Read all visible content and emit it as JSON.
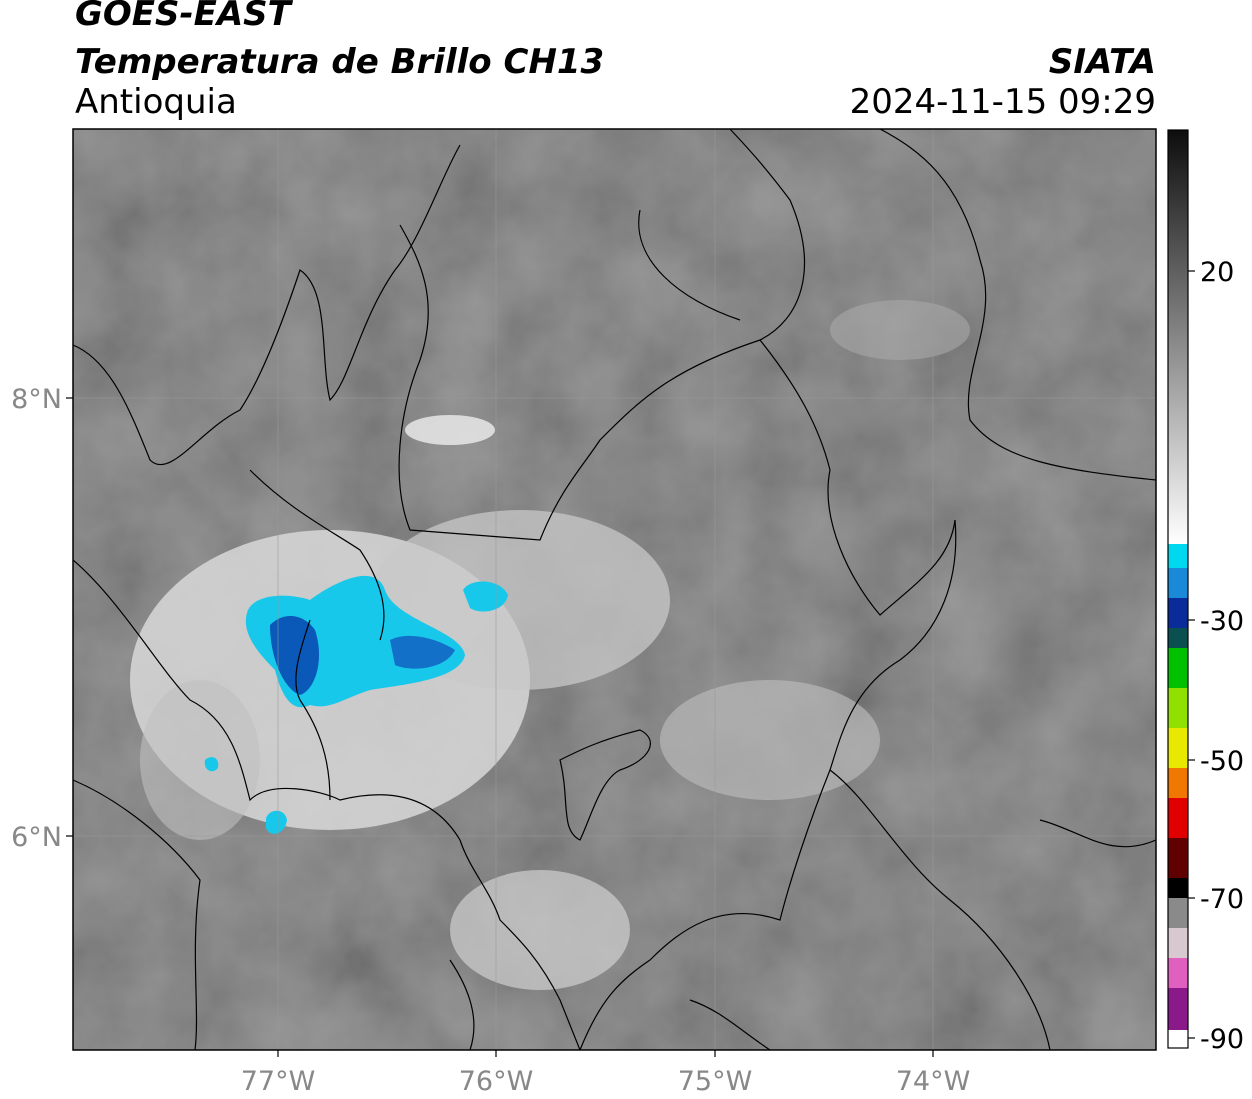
{
  "header": {
    "satellite": "GOES-EAST",
    "product": "Temperatura de Brillo CH13",
    "region": "Antioquia",
    "organization": "SIATA",
    "datetime": "2024-11-15 09:29"
  },
  "map": {
    "lat_labels": [
      "8°N",
      "6°N"
    ],
    "lon_labels": [
      "77°W",
      "76°W",
      "75°W",
      "74°W"
    ]
  },
  "colorbar": {
    "tick_labels": [
      "20",
      "-30",
      "-50",
      "-70",
      "-90"
    ],
    "colors": {
      "warm_gray_dark": "#1a1a1a",
      "warm_gray_light": "#f2f2f2",
      "cyan": "#00d8f0",
      "blue": "#0a2c9a",
      "green": "#00c000",
      "yellow": "#e8e800",
      "red": "#e00000",
      "black": "#000000",
      "pink": "#e060c0",
      "purple": "#8a1a8a"
    }
  }
}
